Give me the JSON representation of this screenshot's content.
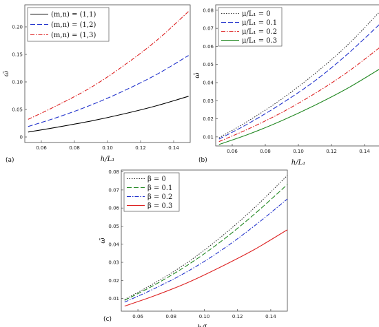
{
  "chart_data": [
    {
      "type": "line",
      "panel_label": "(a)",
      "xlabel": "h/L₁",
      "ylabel": "ω̄",
      "xlim": [
        0.05,
        0.15
      ],
      "ylim": [
        -0.01,
        0.24
      ],
      "xticks": [
        0.06,
        0.08,
        0.1,
        0.12,
        0.14
      ],
      "xtick_labels": [
        "0.06",
        "0.08",
        "0.10",
        "0.12",
        "0.14"
      ],
      "yticks": [
        0,
        0.05,
        0.1,
        0.15,
        0.2
      ],
      "ytick_labels": [
        "0",
        "0.05",
        "0.10",
        "0.15",
        "0.20"
      ],
      "legend_position": "top-left",
      "x": [
        0.052,
        0.07,
        0.09,
        0.11,
        0.13,
        0.149
      ],
      "series": [
        {
          "name": "(m,n) = (1,1)",
          "color": "#000000",
          "dash": "solid",
          "values": [
            0.009,
            0.018,
            0.029,
            0.042,
            0.057,
            0.074
          ]
        },
        {
          "name": "(m,n) = (1,2)",
          "color": "#2233cc",
          "dash": "dashed",
          "values": [
            0.019,
            0.036,
            0.058,
            0.084,
            0.114,
            0.148
          ]
        },
        {
          "name": "(m,n) = (1,3)",
          "color": "#dd2222",
          "dash": "dashdot",
          "values": [
            0.032,
            0.058,
            0.09,
            0.13,
            0.176,
            0.228
          ]
        }
      ]
    },
    {
      "type": "line",
      "panel_label": "(b)",
      "xlabel": "h/L₁",
      "ylabel": "ω̄",
      "xlim": [
        0.05,
        0.15
      ],
      "ylim": [
        0.005,
        0.083
      ],
      "xticks": [
        0.06,
        0.08,
        0.1,
        0.12,
        0.14
      ],
      "xtick_labels": [
        "0.06",
        "0.08",
        "0.10",
        "0.12",
        "0.14"
      ],
      "yticks": [
        0.01,
        0.02,
        0.03,
        0.04,
        0.05,
        0.06,
        0.07,
        0.08
      ],
      "ytick_labels": [
        "0.01",
        "0.02",
        "0.03",
        "0.04",
        "0.05",
        "0.06",
        "0.07",
        "0.08"
      ],
      "legend_position": "top-left",
      "x": [
        0.052,
        0.07,
        0.09,
        0.11,
        0.13,
        0.15
      ],
      "series": [
        {
          "name": "μ/L₁ = 0",
          "color": "#333333",
          "dash": "dotted",
          "values": [
            0.0095,
            0.019,
            0.031,
            0.045,
            0.061,
            0.08
          ]
        },
        {
          "name": "μ/L₁ = 0.1",
          "color": "#2233cc",
          "dash": "dashed",
          "values": [
            0.0088,
            0.0175,
            0.0285,
            0.041,
            0.056,
            0.073
          ]
        },
        {
          "name": "μ/L₁ = 0.2",
          "color": "#dd2222",
          "dash": "dashdot",
          "values": [
            0.0074,
            0.0145,
            0.0235,
            0.034,
            0.046,
            0.06
          ]
        },
        {
          "name": "μ/L₁ = 0.3",
          "color": "#228822",
          "dash": "solid",
          "values": [
            0.0058,
            0.0115,
            0.019,
            0.0275,
            0.037,
            0.048
          ]
        }
      ]
    },
    {
      "type": "line",
      "panel_label": "(c)",
      "xlabel": "h/L₁",
      "ylabel": "ω̄",
      "xlim": [
        0.05,
        0.15
      ],
      "ylim": [
        0.003,
        0.081
      ],
      "xticks": [
        0.06,
        0.08,
        0.1,
        0.12,
        0.14
      ],
      "xtick_labels": [
        "0.06",
        "0.08",
        "0.10",
        "0.12",
        "0.14"
      ],
      "yticks": [
        0.01,
        0.02,
        0.03,
        0.04,
        0.05,
        0.06,
        0.07,
        0.08
      ],
      "ytick_labels": [
        "0.01",
        "0.02",
        "0.03",
        "0.04",
        "0.05",
        "0.06",
        "0.07",
        "0.08"
      ],
      "legend_position": "top-left",
      "x": [
        0.052,
        0.07,
        0.09,
        0.11,
        0.13,
        0.15
      ],
      "series": [
        {
          "name": "β = 0",
          "color": "#333333",
          "dash": "dotted",
          "values": [
            0.0095,
            0.0185,
            0.03,
            0.044,
            0.06,
            0.078
          ]
        },
        {
          "name": "β = 0.1",
          "color": "#228822",
          "dash": "dashed",
          "values": [
            0.009,
            0.0175,
            0.0285,
            0.0415,
            0.0565,
            0.073
          ]
        },
        {
          "name": "β = 0.2",
          "color": "#2233cc",
          "dash": "dashdot",
          "values": [
            0.008,
            0.0155,
            0.025,
            0.0365,
            0.05,
            0.065
          ]
        },
        {
          "name": "β = 0.3",
          "color": "#dd2222",
          "dash": "solid",
          "values": [
            0.0058,
            0.0115,
            0.0188,
            0.0275,
            0.037,
            0.048
          ]
        }
      ]
    }
  ]
}
